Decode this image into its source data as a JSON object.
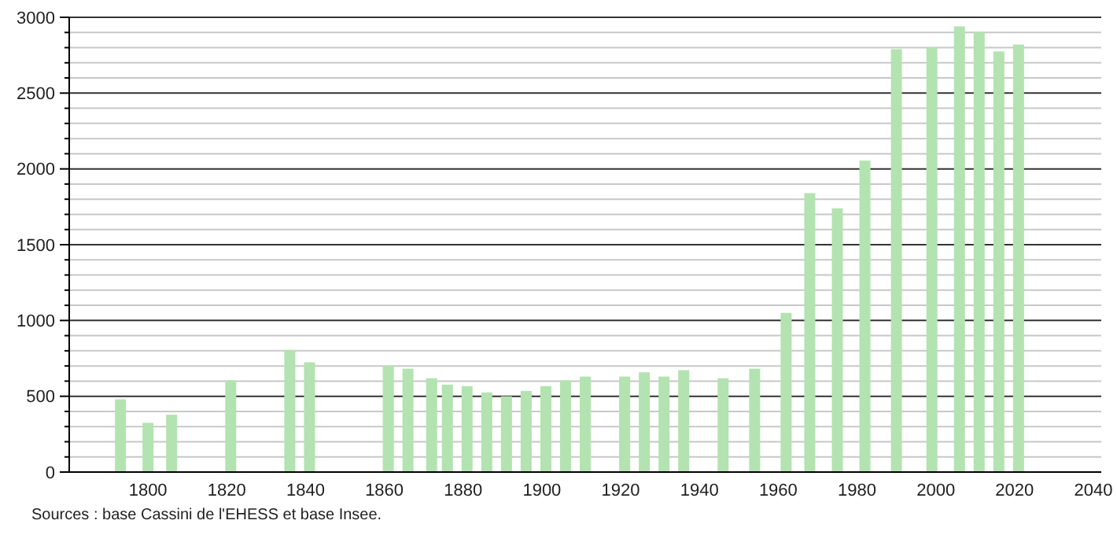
{
  "chart_data": {
    "type": "bar",
    "x": [
      1793,
      1800,
      1806,
      1821,
      1836,
      1841,
      1861,
      1866,
      1872,
      1876,
      1881,
      1886,
      1891,
      1896,
      1901,
      1906,
      1911,
      1921,
      1926,
      1931,
      1936,
      1946,
      1954,
      1962,
      1968,
      1975,
      1982,
      1990,
      1999,
      2006,
      2011,
      2016,
      2021
    ],
    "values": [
      480,
      325,
      378,
      605,
      805,
      724,
      700,
      682,
      619,
      577,
      567,
      525,
      500,
      535,
      567,
      605,
      630,
      630,
      658,
      630,
      672,
      619,
      682,
      1050,
      1840,
      1740,
      2055,
      2790,
      2800,
      2940,
      2905,
      2775,
      2820
    ],
    "color": "#b3e3b0",
    "xlim": [
      1780,
      2042
    ],
    "xticks": [
      1800,
      1820,
      1840,
      1860,
      1880,
      1900,
      1920,
      1940,
      1960,
      1980,
      2000,
      2020,
      2040
    ],
    "ylim": [
      0,
      3000
    ],
    "yticks": [
      0,
      {
        "value": 100,
        "label": null
      },
      {
        "value": 200,
        "label": null
      },
      {
        "value": 300,
        "label": null
      },
      {
        "value": 400,
        "label": null
      },
      500,
      {
        "value": 600,
        "label": null
      },
      {
        "value": 700,
        "label": null
      },
      {
        "value": 800,
        "label": null
      },
      {
        "value": 900,
        "label": null
      },
      1000,
      {
        "value": 1100,
        "label": null
      },
      {
        "value": 1200,
        "label": null
      },
      {
        "value": 1300,
        "label": null
      },
      {
        "value": 1400,
        "label": null
      },
      1500,
      {
        "value": 1600,
        "label": null
      },
      {
        "value": 1700,
        "label": null
      },
      {
        "value": 1800,
        "label": null
      },
      {
        "value": 1900,
        "label": null
      },
      2000,
      {
        "value": 2100,
        "label": null
      },
      {
        "value": 2200,
        "label": null
      },
      {
        "value": 2300,
        "label": null
      },
      {
        "value": 2400,
        "label": null
      },
      2500,
      {
        "value": 2600,
        "label": null
      },
      {
        "value": 2700,
        "label": null
      },
      {
        "value": 2800,
        "label": null
      },
      {
        "value": 2900,
        "label": null
      },
      3000
    ],
    "grid": true,
    "annotations": [
      "Sources : base Cassini de l'EHESS et base Insee."
    ]
  }
}
